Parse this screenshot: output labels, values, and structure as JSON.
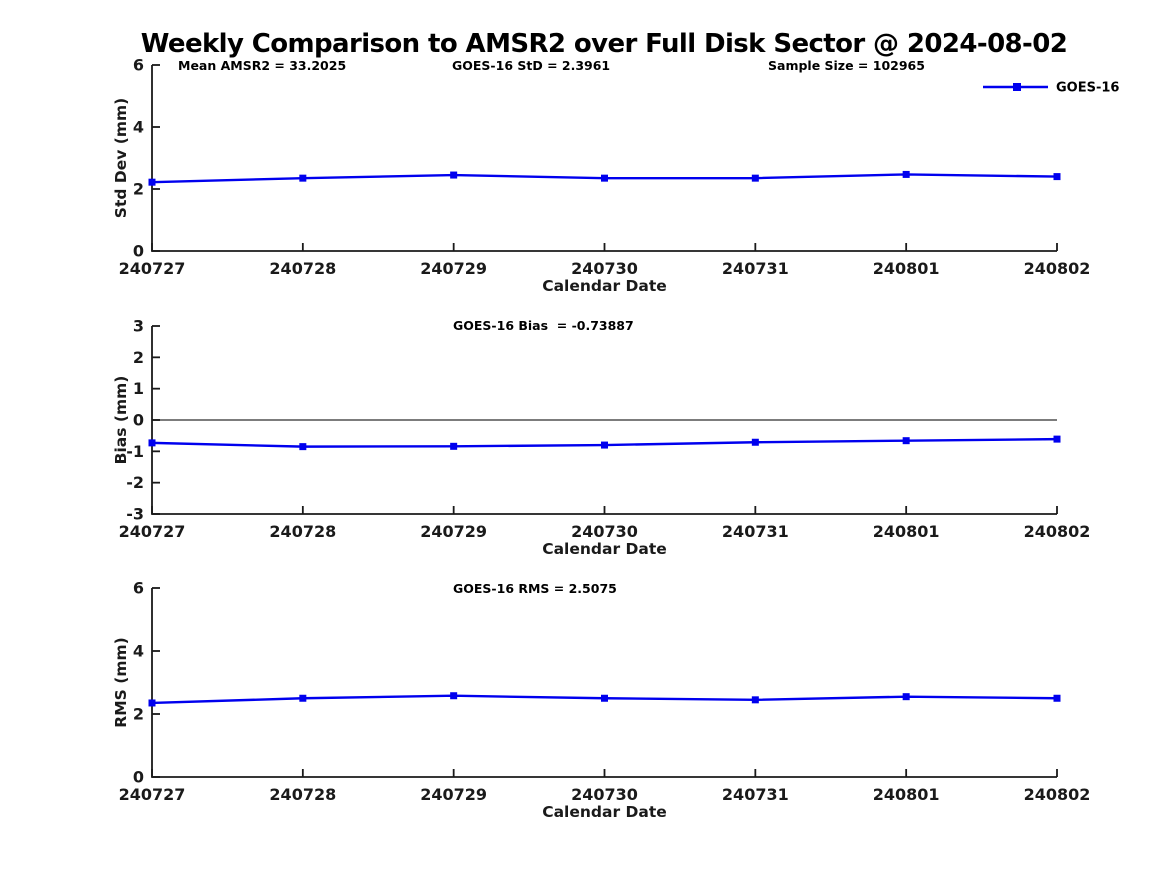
{
  "title": "Weekly Comparison to AMSR2 over Full Disk Sector @ 2024-08-02",
  "colors": {
    "series": "#0000EE",
    "zero_line": "#696969",
    "axis": "#1a1a1a",
    "background": "#ffffff"
  },
  "chart_data": [
    {
      "type": "line",
      "subplot": "std-dev",
      "annotations": [
        "Mean AMSR2 = 33.2025",
        "GOES-16 StD = 2.3961",
        "Sample Size = 102965"
      ],
      "ylabel": "Std Dev (mm)",
      "xlabel": "Calendar Date",
      "x": [
        "240727",
        "240728",
        "240729",
        "240730",
        "240731",
        "240801",
        "240802"
      ],
      "series": [
        {
          "name": "GOES-16",
          "values": [
            2.22,
            2.35,
            2.45,
            2.35,
            2.35,
            2.47,
            2.4
          ]
        }
      ],
      "ylim": [
        0,
        6
      ],
      "yticks": [
        0,
        2,
        4,
        6
      ],
      "grid": false,
      "legend": {
        "label": "GOES-16",
        "position": "top-right-outside"
      }
    },
    {
      "type": "line",
      "subplot": "bias",
      "annotations": [
        "GOES-16 Bias  = -0.73887"
      ],
      "ylabel": "Bias (mm)",
      "xlabel": "Calendar Date",
      "x": [
        "240727",
        "240728",
        "240729",
        "240730",
        "240731",
        "240801",
        "240802"
      ],
      "series": [
        {
          "name": "GOES-16",
          "values": [
            -0.73,
            -0.85,
            -0.84,
            -0.8,
            -0.71,
            -0.66,
            -0.61
          ]
        }
      ],
      "ylim": [
        -3,
        3
      ],
      "yticks": [
        -3,
        -2,
        -1,
        0,
        1,
        2,
        3
      ],
      "zero_line": true,
      "grid": false
    },
    {
      "type": "line",
      "subplot": "rms",
      "annotations": [
        "GOES-16 RMS = 2.5075"
      ],
      "ylabel": "RMS (mm)",
      "xlabel": "Calendar Date",
      "x": [
        "240727",
        "240728",
        "240729",
        "240730",
        "240731",
        "240801",
        "240802"
      ],
      "series": [
        {
          "name": "GOES-16",
          "values": [
            2.35,
            2.5,
            2.58,
            2.5,
            2.45,
            2.55,
            2.5
          ]
        }
      ],
      "ylim": [
        0,
        6
      ],
      "yticks": [
        0,
        2,
        4,
        6
      ],
      "grid": false
    }
  ]
}
